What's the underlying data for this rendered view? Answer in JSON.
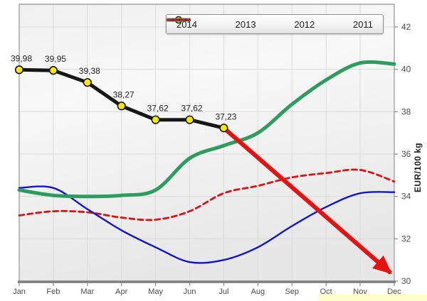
{
  "chart_data": {
    "type": "line",
    "title": "",
    "xlabel": "",
    "ylabel": "EUR/100 kg",
    "categories": [
      "Jan",
      "Feb",
      "Mar",
      "Apr",
      "May",
      "Jun",
      "Jul",
      "Aug",
      "Sep",
      "Oct",
      "Nov",
      "Dec"
    ],
    "y_ticks": [
      30,
      32,
      34,
      36,
      38,
      40,
      42
    ],
    "ylim": [
      30,
      43.1
    ],
    "grid": true,
    "legend_position": "top",
    "series": [
      {
        "name": "2014",
        "color": "#161616",
        "width": 5,
        "dash": "",
        "smooth": false,
        "marker": {
          "fill": "#ffe900",
          "stroke": "#111111",
          "radius": 5.3
        },
        "values": [
          39.98,
          39.95,
          39.38,
          38.27,
          37.62,
          37.62,
          37.23
        ],
        "value_labels": [
          "39,98",
          "39,95",
          "39,38",
          "38,27",
          "37,62",
          "37,62",
          "37,23"
        ]
      },
      {
        "name": "2013",
        "color": "#2f9c5f",
        "width": 5,
        "dash": "",
        "smooth": true,
        "values": [
          34.3,
          34.05,
          34.0,
          34.05,
          34.3,
          35.8,
          36.4,
          37.0,
          38.35,
          39.5,
          40.3,
          40.25
        ]
      },
      {
        "name": "2012",
        "color": "#1313cc",
        "width": 2.4,
        "dash": "",
        "smooth": true,
        "values": [
          34.4,
          34.4,
          33.4,
          32.4,
          31.6,
          30.9,
          31.0,
          31.6,
          32.6,
          33.5,
          34.15,
          34.2
        ]
      },
      {
        "name": "2011",
        "color": "#dd1111",
        "width": 2.8,
        "dash": "7,5",
        "smooth": true,
        "values": [
          33.1,
          33.3,
          33.25,
          33.0,
          32.9,
          33.3,
          34.15,
          34.5,
          34.9,
          35.1,
          35.25,
          34.7
        ]
      }
    ],
    "trend_arrow": {
      "from_month_index": 6,
      "from_value": 37.23,
      "to_month_index": 11,
      "to_value": 30.25,
      "color": "#e51212"
    },
    "colors": {
      "gridline": "#dadada",
      "plot_border": "#a3a3a3",
      "axis_line": "#7c7c7c",
      "tick_label": "#4c4c4c",
      "data_label": "#1f1f1f",
      "highlight": "#ffffc9"
    }
  }
}
